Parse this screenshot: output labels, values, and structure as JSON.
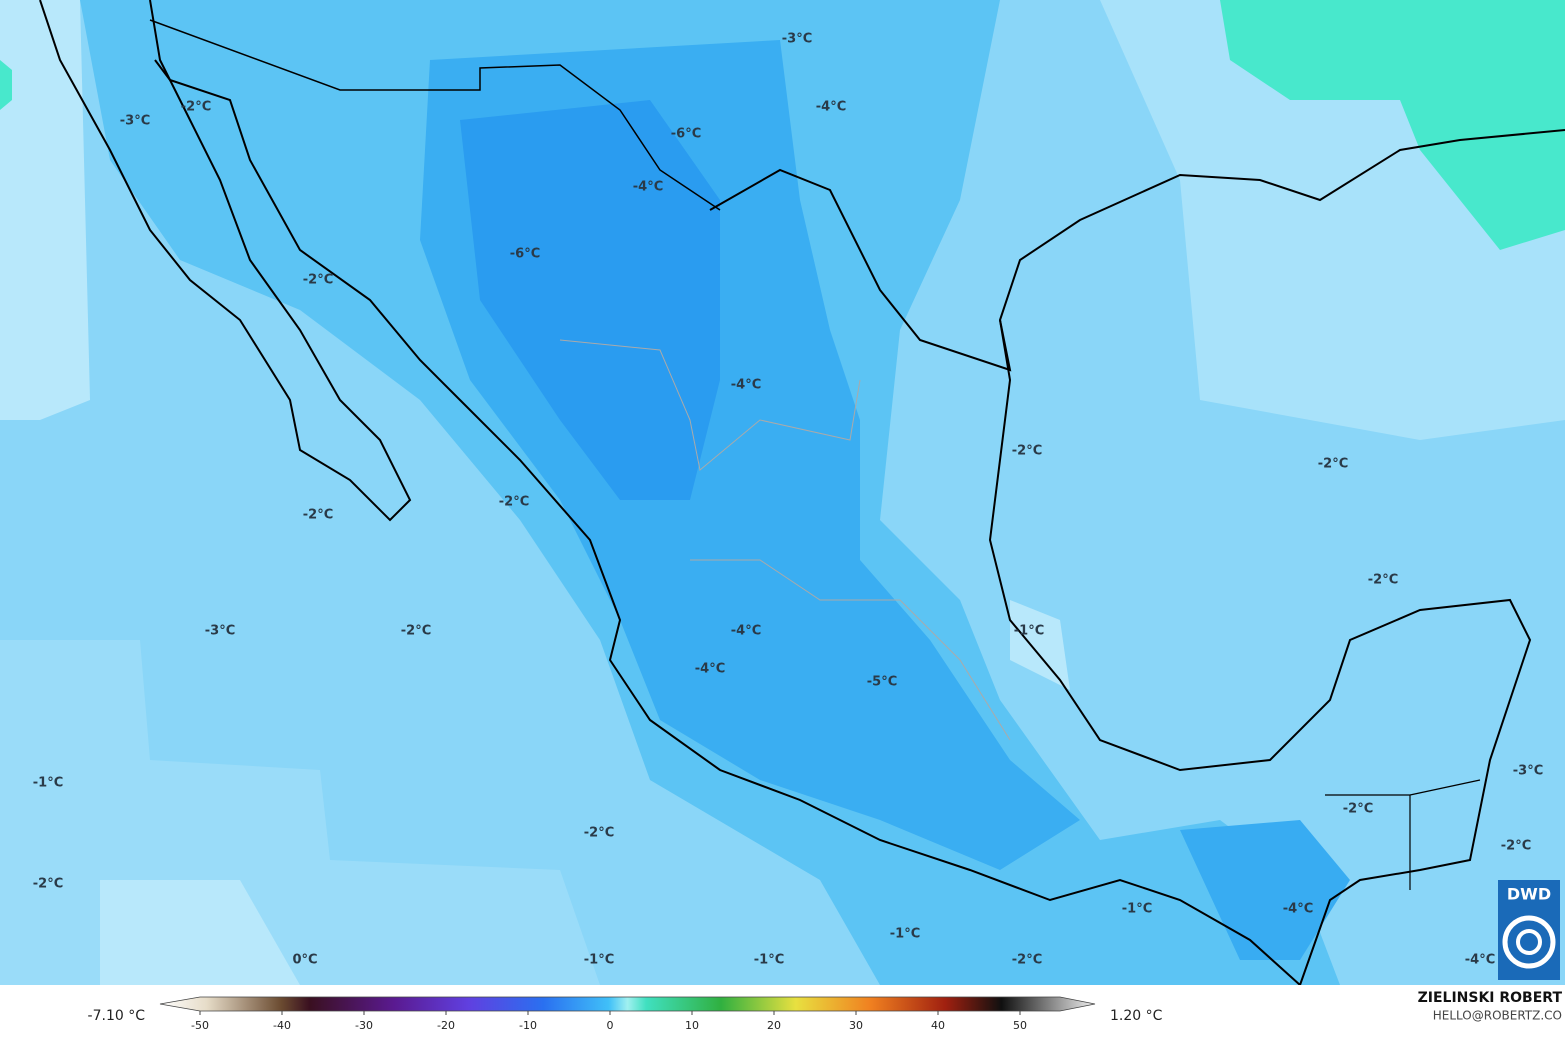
{
  "map": {
    "labels": [
      "-3°C",
      "-4°C",
      "-6°C",
      "-2°C",
      "-3°C",
      "-4°C",
      "-6°C",
      "-2°C",
      "-4°C",
      "-2°C",
      "-2°C",
      "-2°C",
      "-2°C",
      "-2°C",
      "-3°C",
      "-2°C",
      "-4°C",
      "-1°C",
      "-4°C",
      "-5°C",
      "-1°C",
      "-3°C",
      "-2°C",
      "-2°C",
      "-2°C",
      "-2°C",
      "-1°C",
      "-4°C",
      "-1°C",
      "0°C",
      "-1°C",
      "-1°C",
      "-2°C",
      "-4°C"
    ],
    "legend": {
      "min_label": "-7.10 °C",
      "max_label": "1.20 °C",
      "ticks": [
        -50,
        -40,
        -30,
        -20,
        -10,
        0,
        10,
        20,
        30,
        40,
        50
      ]
    },
    "credit": {
      "name": "ZIELINSKI ROBERT",
      "email": "HELLO@ROBERTZ.CO",
      "logo": "DWD"
    }
  }
}
